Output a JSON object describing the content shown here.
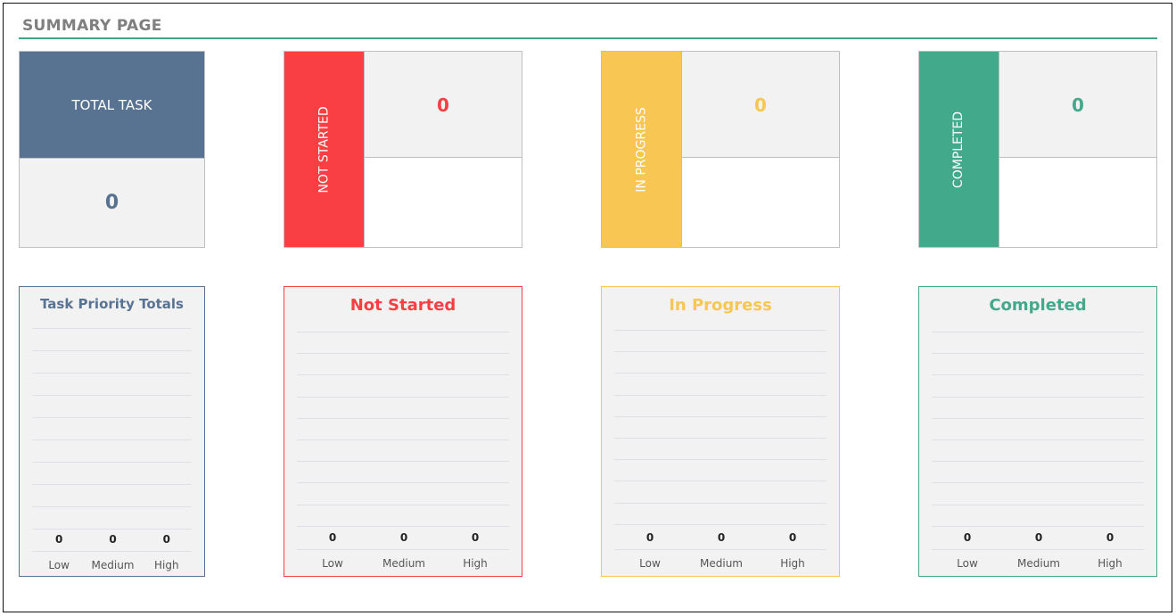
{
  "header": {
    "title": "SUMMARY PAGE"
  },
  "colors": {
    "total": "#587391",
    "not_started": "#f93f44",
    "in_progress": "#f8c653",
    "completed": "#43a98b",
    "accent": "#3fa58a"
  },
  "tiles": {
    "total": {
      "label": "TOTAL TASK",
      "value": "0"
    },
    "not_started": {
      "label": "NOT STARTED",
      "value": "0"
    },
    "in_progress": {
      "label": "IN PROGRESS",
      "value": "0"
    },
    "completed": {
      "label": "COMPLETED",
      "value": "0"
    }
  },
  "chart_data": [
    {
      "type": "bar",
      "title": "Task Priority Totals",
      "categories": [
        "Low",
        "Medium",
        "High"
      ],
      "values": [
        0,
        0,
        0
      ],
      "grid": true
    },
    {
      "type": "bar",
      "title": "Not Started",
      "categories": [
        "Low",
        "Medium",
        "High"
      ],
      "values": [
        0,
        0,
        0
      ],
      "grid": true
    },
    {
      "type": "bar",
      "title": "In Progress",
      "categories": [
        "Low",
        "Medium",
        "High"
      ],
      "values": [
        0,
        0,
        0
      ],
      "grid": true
    },
    {
      "type": "bar",
      "title": "Completed",
      "categories": [
        "Low",
        "Medium",
        "High"
      ],
      "values": [
        0,
        0,
        0
      ],
      "grid": true
    }
  ]
}
